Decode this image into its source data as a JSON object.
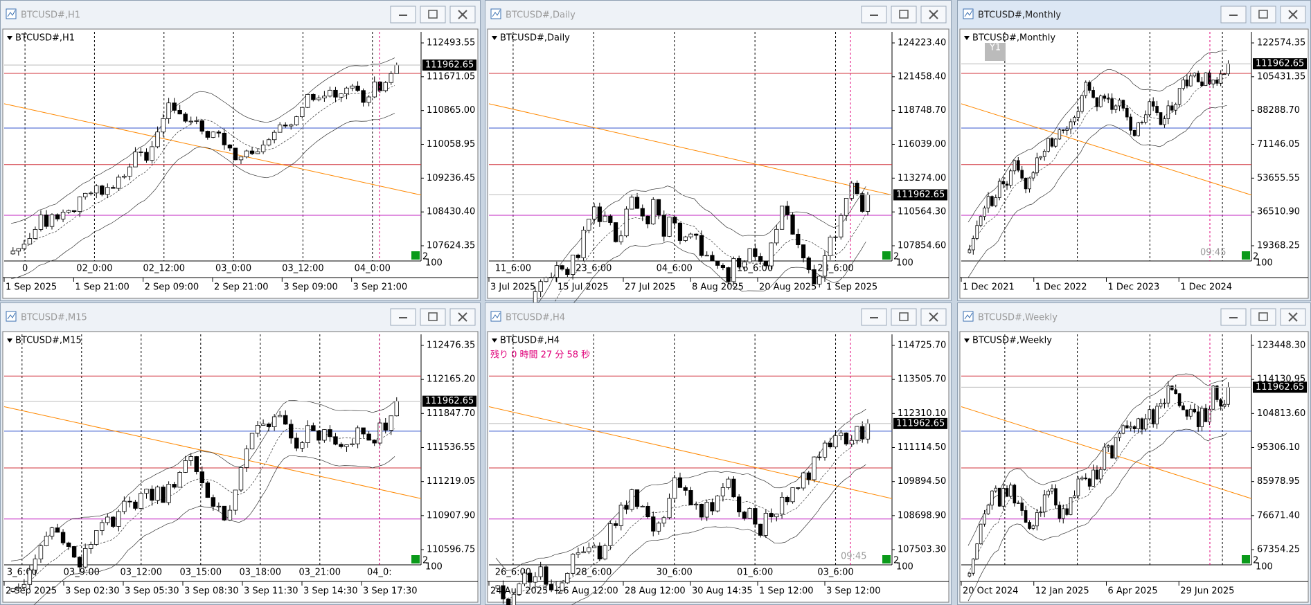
{
  "windows": [
    {
      "title": "BTCUSD#,H1",
      "label": "BTCUSD#,H1",
      "prices": [
        "112493.55",
        "111671.05",
        "110865.00",
        "110058.95",
        "109236.45",
        "108430.40",
        "107624.35"
      ],
      "current": "111962.65",
      "axis_times": [
        "0",
        "02_0:00",
        "02_12:00",
        "03_0:00",
        "03_12:00",
        "04_0:00"
      ],
      "dates": [
        "1 Sep 2025",
        "1 Sep 21:00",
        "2 Sep 09:00",
        "2 Sep 21:00",
        "3 Sep 09:00",
        "3 Sep 21:00"
      ],
      "corner": [
        "2",
        "100"
      ]
    },
    {
      "title": "BTCUSD#,Daily",
      "label": "BTCUSD#,Daily",
      "prices": [
        "124223.40",
        "121458.40",
        "118748.70",
        "116039.00",
        "113274.00",
        "110564.30",
        "107854.60"
      ],
      "current": "111962.65",
      "axis_times": [
        "11_6:00",
        "23_6:00",
        "04_6:00",
        "16_6:00",
        "28_6:00"
      ],
      "dates": [
        "3 Jul 2025",
        "15 Jul 2025",
        "27 Jul 2025",
        "8 Aug 2025",
        "20 Aug 2025",
        "1 Sep 2025"
      ],
      "corner": [
        "2",
        "100"
      ]
    },
    {
      "title": "BTCUSD#,Monthly",
      "label": "BTCUSD#,Monthly",
      "prices": [
        "122574.35",
        "105431.35",
        "88288.70",
        "71146.05",
        "53655.55",
        "36510.90",
        "19368.25"
      ],
      "current": "111962.65",
      "axis_times": [],
      "dates": [
        "1 Dec 2021",
        "1 Dec 2022",
        "1 Dec 2023",
        "1 Dec 2024"
      ],
      "corner": [
        "2",
        "100"
      ],
      "clock": "09:45",
      "badge": "Y1"
    },
    {
      "title": "BTCUSD#,M15",
      "label": "BTCUSD#,M15",
      "prices": [
        "112476.35",
        "112165.20",
        "111847.70",
        "111536.55",
        "111219.05",
        "110907.90",
        "110596.75"
      ],
      "current": "111962.65",
      "axis_times": [
        "3_6:00",
        "03_9:00",
        "03_12:00",
        "03_15:00",
        "03_18:00",
        "03_21:00",
        "04_0:"
      ],
      "dates": [
        "2 Sep 2025",
        "3 Sep 02:30",
        "3 Sep 05:30",
        "3 Sep 08:30",
        "3 Sep 11:30",
        "3 Sep 14:30",
        "3 Sep 17:30"
      ],
      "corner": [
        "2",
        "100"
      ]
    },
    {
      "title": "BTCUSD#,H4",
      "label": "BTCUSD#,H4",
      "prices": [
        "114725.70",
        "113505.70",
        "112310.10",
        "111114.50",
        "109894.50",
        "108698.90",
        "107503.30"
      ],
      "current": "111962.65",
      "axis_times": [
        "26_6:00",
        "28_6:00",
        "30_6:00",
        "01_6:00",
        "03_6:00"
      ],
      "dates": [
        "24 Aug 2025",
        "26 Aug 12:00",
        "28 Aug 12:00",
        "30 Aug 14:35",
        "1 Sep 12:00",
        "3 Sep 12:00"
      ],
      "corner": [
        "2",
        "100"
      ],
      "clock": "09:45",
      "countdown": "残り 0 時間 27 分 58 秒"
    },
    {
      "title": "BTCUSD#,Weekly",
      "label": "BTCUSD#,Weekly",
      "prices": [
        "123448.30",
        "114130.95",
        "104813.60",
        "95306.10",
        "85978.95",
        "76671.40",
        "67354.25"
      ],
      "current": "111962.65",
      "axis_times": [],
      "dates": [
        "20 Oct 2024",
        "12 Jan 2025",
        "6 Apr 2025",
        "29 Jun 2025"
      ],
      "corner": [
        "2",
        "100"
      ]
    }
  ]
}
